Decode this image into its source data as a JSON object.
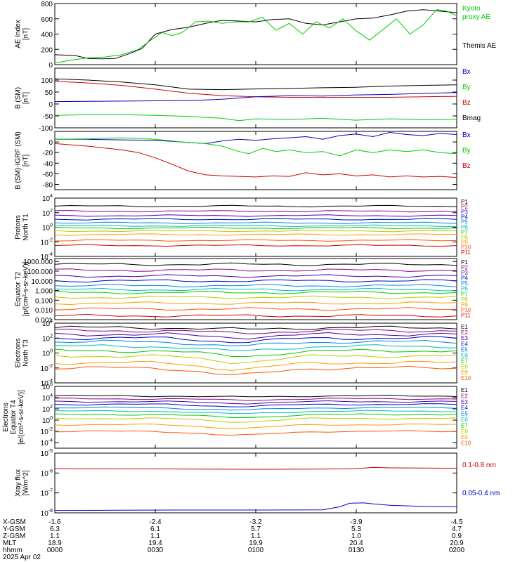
{
  "chart_data": [
    {
      "type": "line",
      "id": "ae",
      "ylabel": [
        "AE Index",
        "[nT]"
      ],
      "ylim": [
        0,
        800
      ],
      "yticks": [
        {
          "v": 0,
          "t": "0"
        },
        {
          "v": 200,
          "t": "200"
        },
        {
          "v": 400,
          "t": "400"
        },
        {
          "v": 600,
          "t": "600"
        },
        {
          "v": 800,
          "t": "800"
        }
      ],
      "legend": [
        {
          "text": "Kyoto",
          "color": "#00cc00",
          "pos": "top"
        },
        {
          "text": "proxy AE",
          "color": "#00cc00",
          "pos": "top"
        },
        {
          "text": "Themis AE",
          "color": "#000000",
          "pos": "middle"
        }
      ],
      "series": [
        {
          "color": "#000000",
          "x": [
            0,
            6,
            10,
            14,
            18,
            22,
            26,
            30,
            35,
            40,
            45,
            50,
            55,
            60,
            65,
            70,
            75,
            80,
            85,
            90,
            95,
            100,
            105,
            110,
            115,
            120
          ],
          "y": [
            130,
            120,
            80,
            75,
            80,
            140,
            210,
            400,
            460,
            490,
            540,
            580,
            570,
            560,
            590,
            600,
            540,
            520,
            560,
            600,
            610,
            650,
            700,
            720,
            700,
            680
          ]
        },
        {
          "color": "#00cc00",
          "x": [
            0,
            5,
            10,
            15,
            20,
            25,
            28,
            32,
            35,
            38,
            42,
            46,
            50,
            54,
            58,
            62,
            66,
            70,
            74,
            78,
            82,
            86,
            90,
            94,
            98,
            102,
            106,
            110,
            114,
            117,
            120
          ],
          "y": [
            20,
            60,
            90,
            100,
            130,
            200,
            300,
            420,
            380,
            420,
            560,
            570,
            540,
            560,
            560,
            620,
            450,
            540,
            400,
            560,
            480,
            600,
            440,
            320,
            460,
            600,
            400,
            520,
            720,
            700,
            640
          ]
        }
      ]
    },
    {
      "type": "line",
      "id": "bsm",
      "ylabel": [
        "B (SM)",
        "[nT]"
      ],
      "ylim": [
        -100,
        150
      ],
      "yticks": [
        {
          "v": -100,
          "t": "-100"
        },
        {
          "v": -50,
          "t": "-50"
        },
        {
          "v": 0,
          "t": "0"
        },
        {
          "v": 50,
          "t": "50"
        },
        {
          "v": 100,
          "t": "100"
        }
      ],
      "legend": [
        {
          "text": "Bx",
          "color": "#0000cc",
          "pos": "r1"
        },
        {
          "text": "By",
          "color": "#00cc00",
          "pos": "r2"
        },
        {
          "text": "Bz",
          "color": "#cc0000",
          "pos": "r3"
        },
        {
          "text": "Bmag",
          "color": "#000000",
          "pos": "r4"
        }
      ],
      "series": [
        {
          "color": "#000000",
          "x": [
            0,
            10,
            20,
            30,
            40,
            50,
            60,
            70,
            80,
            90,
            100,
            110,
            120
          ],
          "y": [
            105,
            100,
            92,
            80,
            62,
            60,
            63,
            65,
            68,
            70,
            75,
            78,
            80
          ]
        },
        {
          "color": "#cc0000",
          "x": [
            0,
            10,
            20,
            30,
            40,
            50,
            60,
            70,
            80,
            90,
            100,
            110,
            120
          ],
          "y": [
            95,
            88,
            78,
            62,
            45,
            35,
            30,
            28,
            28,
            28,
            28,
            30,
            32
          ]
        },
        {
          "color": "#0000cc",
          "x": [
            0,
            40,
            50,
            60,
            70,
            80,
            90,
            100,
            110,
            120
          ],
          "y": [
            10,
            14,
            20,
            30,
            35,
            33,
            38,
            40,
            44,
            48
          ]
        },
        {
          "color": "#00cc00",
          "x": [
            0,
            10,
            20,
            30,
            40,
            50,
            55,
            60,
            70,
            80,
            90,
            100,
            110,
            120
          ],
          "y": [
            -48,
            -45,
            -45,
            -48,
            -52,
            -60,
            -70,
            -62,
            -65,
            -60,
            -68,
            -62,
            -66,
            -64
          ]
        }
      ]
    },
    {
      "type": "line",
      "id": "bigrf",
      "ylabel": [
        "B (SM)-IGRF (SM)",
        "[nT]"
      ],
      "ylim": [
        -90,
        20
      ],
      "yticks": [
        {
          "v": -80,
          "t": "-80"
        },
        {
          "v": -60,
          "t": "-60"
        },
        {
          "v": -40,
          "t": "-40"
        },
        {
          "v": -20,
          "t": "-20"
        },
        {
          "v": 0,
          "t": "0"
        }
      ],
      "legend": [
        {
          "text": "Bx",
          "color": "#0000cc",
          "pos": "r1"
        },
        {
          "text": "By",
          "color": "#00cc00",
          "pos": "r2"
        },
        {
          "text": "Bz",
          "color": "#cc0000",
          "pos": "r3"
        }
      ],
      "series": [
        {
          "color": "#0000cc",
          "x": [
            0,
            10,
            20,
            30,
            38,
            45,
            50,
            55,
            60,
            65,
            70,
            75,
            80,
            85,
            90,
            95,
            100,
            105,
            110,
            115,
            120
          ],
          "y": [
            5,
            5,
            4,
            3,
            0,
            -3,
            2,
            5,
            3,
            6,
            8,
            10,
            5,
            12,
            15,
            10,
            18,
            14,
            12,
            16,
            14
          ]
        },
        {
          "color": "#00cc00",
          "x": [
            0,
            10,
            20,
            30,
            38,
            45,
            50,
            55,
            58,
            62,
            66,
            70,
            75,
            80,
            85,
            90,
            95,
            100,
            105,
            110,
            115,
            120
          ],
          "y": [
            5,
            6,
            8,
            5,
            0,
            -3,
            -8,
            -18,
            -22,
            -12,
            -18,
            -15,
            -20,
            -18,
            -26,
            -15,
            -20,
            -15,
            -18,
            -15,
            -20,
            -22
          ]
        },
        {
          "color": "#cc0000",
          "x": [
            0,
            10,
            20,
            25,
            30,
            35,
            40,
            45,
            50,
            55,
            60,
            65,
            70,
            75,
            80,
            85,
            90,
            95,
            100,
            105,
            110,
            115,
            120
          ],
          "y": [
            -3,
            -8,
            -15,
            -20,
            -30,
            -42,
            -55,
            -62,
            -64,
            -65,
            -66,
            -64,
            -65,
            -58,
            -62,
            -60,
            -64,
            -62,
            -66,
            -64,
            -66,
            -65,
            -67
          ]
        }
      ]
    },
    {
      "type": "line",
      "id": "pn",
      "log": true,
      "ylabel": [
        "Protons",
        "North T1"
      ],
      "ylim": [
        -4,
        4
      ],
      "yticks": [
        {
          "v": -4,
          "t": "10",
          "e": "-4"
        },
        {
          "v": -2,
          "t": "10",
          "e": "-2"
        },
        {
          "v": 0,
          "t": "10",
          "e": "0"
        },
        {
          "v": 2,
          "t": "10",
          "e": "2"
        },
        {
          "v": 4,
          "t": "10",
          "e": "4"
        }
      ],
      "legend_small": [
        "P1",
        "P2",
        "P3",
        "P4",
        "P5",
        "P6",
        "P7",
        "P8",
        "P9",
        "P10",
        "P11"
      ],
      "palette": [
        "#000000",
        "#880088",
        "#4400aa",
        "#0000cc",
        "#0088dd",
        "#00bbbb",
        "#00cc00",
        "#bbcc00",
        "#ff9900",
        "#ff5500",
        "#cc0000",
        "#880000"
      ],
      "levels": [
        2.9,
        2.2,
        1.6,
        1.1,
        0.6,
        0.2,
        -0.1,
        -0.5,
        -1.0,
        -1.8,
        -2.5
      ],
      "wiggle": 0.12
    },
    {
      "type": "line",
      "id": "pe",
      "log": true,
      "ylabel": [
        "Equator T2",
        "[p/(cm²-s-sr-keV)]"
      ],
      "ylim": [
        -3,
        3.3
      ],
      "yticks": [
        {
          "v": -3,
          "t": "0.001"
        },
        {
          "v": -2,
          "t": "0.010"
        },
        {
          "v": -1,
          "t": "0.100"
        },
        {
          "v": 0,
          "t": "1.000"
        },
        {
          "v": 1,
          "t": "10.000"
        },
        {
          "v": 2,
          "t": "100.000"
        },
        {
          "v": 3,
          "t": "1000.000"
        }
      ],
      "legend_small": [
        "P1",
        "P2",
        "P3",
        "P4",
        "P5",
        "P6",
        "P7",
        "P8",
        "P9",
        "P10",
        "P11"
      ],
      "palette": [
        "#000000",
        "#880088",
        "#4400aa",
        "#0000cc",
        "#0088dd",
        "#00bbbb",
        "#00cc00",
        "#bbcc00",
        "#ff9900",
        "#ff5500",
        "#cc0000",
        "#880000"
      ],
      "levels": [
        2.7,
        2.1,
        1.5,
        1.0,
        0.5,
        0.1,
        -0.2,
        -0.7,
        -1.3,
        -1.9,
        -2.6
      ],
      "wiggle": 0.15
    },
    {
      "type": "line",
      "id": "en",
      "log": true,
      "ylabel": [
        "Electrons",
        "North T3"
      ],
      "ylim": [
        -4,
        4
      ],
      "yticks": [
        {
          "v": -4,
          "t": "10",
          "e": "-4"
        },
        {
          "v": -2,
          "t": "10",
          "e": "-2"
        },
        {
          "v": 0,
          "t": "10",
          "e": "0"
        },
        {
          "v": 2,
          "t": "10",
          "e": "2"
        },
        {
          "v": 4,
          "t": "10",
          "e": "4"
        }
      ],
      "legend_small": [
        "E1",
        "E2",
        "E3",
        "E4",
        "E5",
        "E6",
        "E7",
        "E8",
        "E9",
        "E10"
      ],
      "palette": [
        "#000000",
        "#880088",
        "#4400aa",
        "#0000cc",
        "#0088dd",
        "#00bbbb",
        "#00cc00",
        "#bbcc00",
        "#ff9900",
        "#ff5500",
        "#cc0000",
        "#880000"
      ],
      "levels": [
        3.4,
        3.0,
        2.5,
        2.0,
        1.5,
        0.9,
        0.3,
        -0.4,
        -1.3,
        -2.0
      ],
      "wiggle": 0.25,
      "dip": 0.8
    },
    {
      "type": "line",
      "id": "ee",
      "log": true,
      "ylabel": [
        "Electrons",
        "Equator T4",
        "[e/(cm²-s-sr-keV)]"
      ],
      "ylim": [
        -5,
        6
      ],
      "yticks": [
        {
          "v": -4,
          "t": "10",
          "e": "-4"
        },
        {
          "v": -2,
          "t": "10",
          "e": "-2"
        },
        {
          "v": 0,
          "t": "10",
          "e": "0"
        },
        {
          "v": 2,
          "t": "10",
          "e": "2"
        },
        {
          "v": 4,
          "t": "10",
          "e": "4"
        },
        {
          "v": 6,
          "t": "10",
          "e": "6"
        }
      ],
      "legend_small": [
        "E1",
        "E2",
        "E3",
        "E4",
        "E5",
        "E6",
        "E7",
        "E8",
        "E9",
        "E10"
      ],
      "palette": [
        "#000000",
        "#880088",
        "#4400aa",
        "#0000cc",
        "#0088dd",
        "#00bbbb",
        "#00cc00",
        "#bbcc00",
        "#ff9900",
        "#ff5500",
        "#cc0000",
        "#880000"
      ],
      "levels": [
        4.3,
        3.8,
        3.3,
        2.8,
        2.2,
        1.6,
        1.0,
        0.3,
        -0.8,
        -2.0
      ],
      "wiggle": 0.15,
      "dip": 0.6
    },
    {
      "type": "line",
      "id": "xray",
      "log": true,
      "ylabel": [
        "Xray flux",
        "[W/m^2]"
      ],
      "ylim": [
        -8,
        -5
      ],
      "yticks": [
        {
          "v": -8,
          "t": "10",
          "e": "-8"
        },
        {
          "v": -7,
          "t": "10",
          "e": "-7"
        },
        {
          "v": -6,
          "t": "10",
          "e": "-6"
        },
        {
          "v": -5,
          "t": "10",
          "e": "-5"
        }
      ],
      "legend": [
        {
          "text": "0.1-0.8 nm",
          "color": "#cc0000",
          "pos": "upper"
        },
        {
          "text": "0.05-0.4 nm",
          "color": "#0000cc",
          "pos": "lower"
        }
      ],
      "series": [
        {
          "color": "#cc0000",
          "x": [
            0,
            20,
            40,
            60,
            80,
            90,
            95,
            100,
            110,
            120
          ],
          "y": [
            -5.78,
            -5.79,
            -5.8,
            -5.81,
            -5.8,
            -5.78,
            -5.72,
            -5.74,
            -5.75,
            -5.76
          ]
        },
        {
          "color": "#0000cc",
          "x": [
            0,
            20,
            40,
            60,
            80,
            85,
            88,
            92,
            95,
            100,
            110,
            120
          ],
          "y": [
            -7.88,
            -7.87,
            -7.86,
            -7.86,
            -7.85,
            -7.7,
            -7.52,
            -7.5,
            -7.55,
            -7.62,
            -7.68,
            -7.7
          ]
        }
      ]
    }
  ],
  "footer": {
    "rows": [
      {
        "label": "X-GSM",
        "values": [
          "-1.6",
          "-2.4",
          "-3.2",
          "-3.9",
          "-4.5"
        ]
      },
      {
        "label": "Y-GSM",
        "values": [
          "6.3",
          "6.1",
          "5.7",
          "5.3",
          "4.7"
        ]
      },
      {
        "label": "Z-GSM",
        "values": [
          "1.1",
          "1.1",
          "1.1",
          "1.0",
          "0.9"
        ]
      },
      {
        "label": "MLT",
        "values": [
          "18.9",
          "19.4",
          "19.9",
          "20.4",
          "20.9"
        ]
      },
      {
        "label": "hhmm",
        "values": [
          "0000",
          "0030",
          "0100",
          "0130",
          "0200"
        ]
      }
    ],
    "date": "2025 Apr 02"
  }
}
